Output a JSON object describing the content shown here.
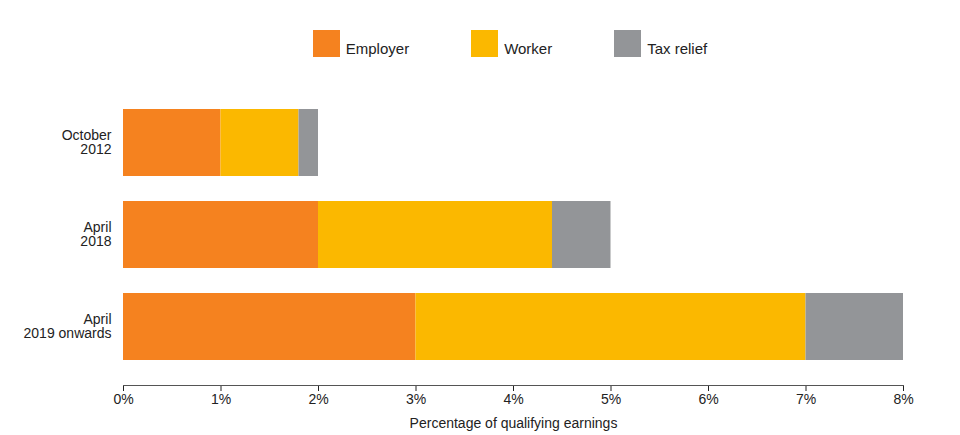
{
  "chart_data": {
    "type": "bar",
    "orientation": "horizontal",
    "stacked": true,
    "legend": "top",
    "grid": false,
    "categories": [
      "October\n2012",
      "April\n2018",
      "April\n2019 onwards"
    ],
    "series": [
      {
        "name": "Employer",
        "color": "#f5821f",
        "values": [
          1,
          2,
          3
        ]
      },
      {
        "name": "Worker",
        "color": "#fbb800",
        "values": [
          0.8,
          2.4,
          4
        ]
      },
      {
        "name": "Tax relief",
        "color": "#939598",
        "values": [
          0.2,
          0.6,
          1
        ]
      }
    ],
    "xlabel": "Percentage of qualifying earnings",
    "xlim": [
      0,
      8
    ],
    "xticks": [
      {
        "value": 0,
        "label": "0%"
      },
      {
        "value": 1,
        "label": "1%"
      },
      {
        "value": 2,
        "label": "2%"
      },
      {
        "value": 3,
        "label": "3%"
      },
      {
        "value": 4,
        "label": "4%"
      },
      {
        "value": 5,
        "label": "5%"
      },
      {
        "value": 6,
        "label": "6%"
      },
      {
        "value": 7,
        "label": "7%"
      },
      {
        "value": 8,
        "label": "8%"
      }
    ]
  }
}
